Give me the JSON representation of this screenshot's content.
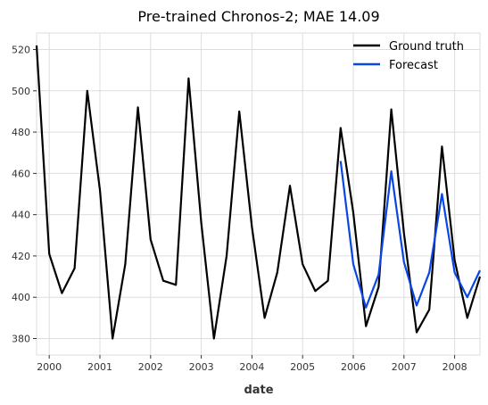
{
  "chart_data": {
    "type": "line",
    "title": "Pre-trained Chronos-2; MAE 14.09",
    "xlabel": "date",
    "ylabel": "",
    "xlim": [
      1999.75,
      2008.5
    ],
    "ylim": [
      372,
      528
    ],
    "x_ticks": [
      2000,
      2001,
      2002,
      2003,
      2004,
      2005,
      2006,
      2007,
      2008
    ],
    "x_tick_labels": [
      "2000",
      "2001",
      "2002",
      "2003",
      "2004",
      "2005",
      "2006",
      "2007",
      "2008"
    ],
    "y_ticks": [
      380,
      400,
      420,
      440,
      460,
      480,
      500,
      520
    ],
    "y_tick_labels": [
      "380",
      "400",
      "420",
      "440",
      "460",
      "480",
      "500",
      "520"
    ],
    "grid": true,
    "legend_position": "top-right",
    "series": [
      {
        "name": "Ground truth",
        "color": "#000000",
        "x": [
          1999.75,
          2000.0,
          2000.25,
          2000.5,
          2000.75,
          2001.0,
          2001.25,
          2001.5,
          2001.75,
          2002.0,
          2002.25,
          2002.5,
          2002.75,
          2003.0,
          2003.25,
          2003.5,
          2003.75,
          2004.0,
          2004.25,
          2004.5,
          2004.75,
          2005.0,
          2005.25,
          2005.5,
          2005.75,
          2006.0,
          2006.25,
          2006.5,
          2006.75,
          2007.0,
          2007.25,
          2007.5,
          2007.75,
          2008.0,
          2008.25,
          2008.5
        ],
        "values": [
          522,
          421,
          402,
          414,
          500,
          452,
          380,
          416,
          492,
          428,
          408,
          406,
          506,
          436,
          380,
          420,
          490,
          434,
          390,
          412,
          454,
          416,
          403,
          408,
          482,
          441,
          386,
          405,
          491,
          431,
          383,
          394,
          473,
          418,
          390,
          410
        ]
      },
      {
        "name": "Forecast",
        "color": "#0a46e6",
        "x": [
          2005.75,
          2006.0,
          2006.25,
          2006.5,
          2006.75,
          2007.0,
          2007.25,
          2007.5,
          2007.75,
          2008.0,
          2008.25,
          2008.5
        ],
        "values": [
          466,
          416,
          395,
          411,
          461,
          417,
          396,
          412,
          450,
          412,
          400,
          413
        ]
      }
    ]
  }
}
